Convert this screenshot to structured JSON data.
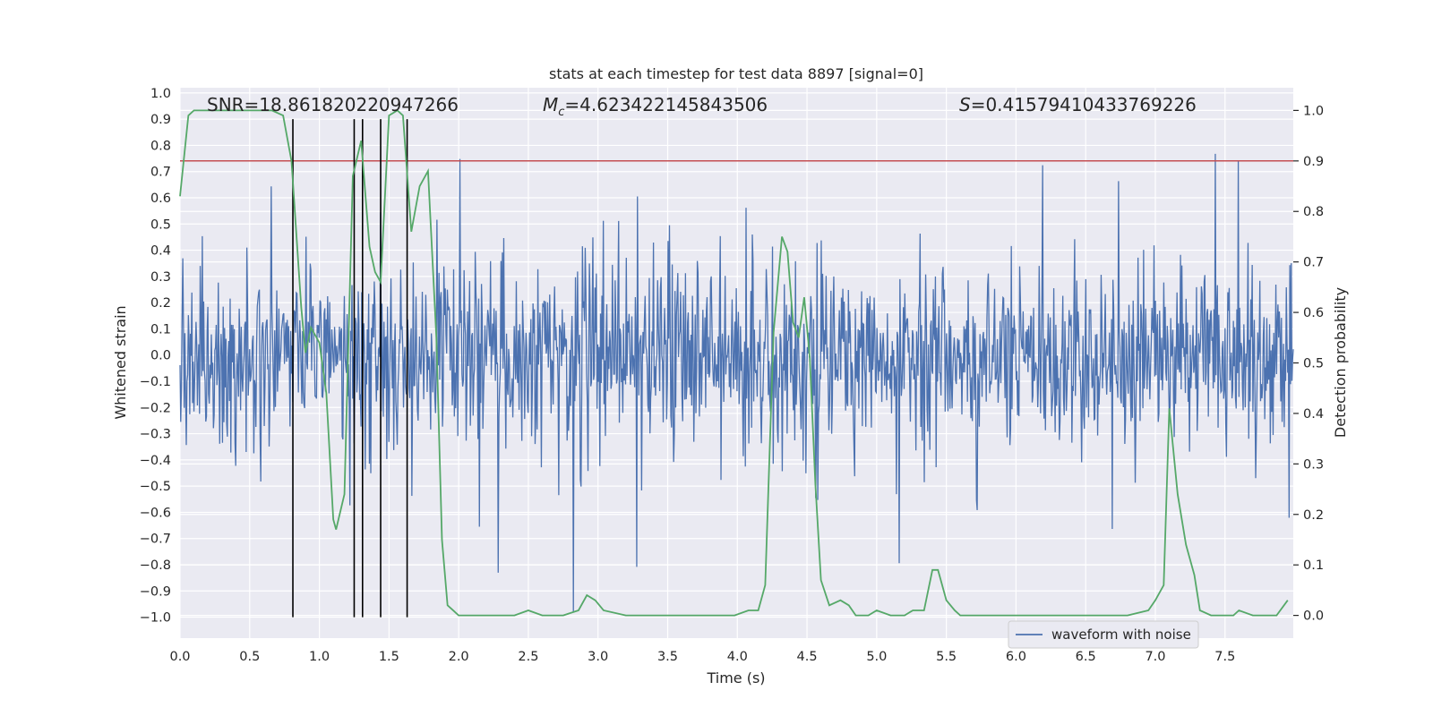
{
  "chart_data": {
    "type": "line",
    "title": "stats at each timestep for test data 8897 [signal=0]",
    "xlabel": "Time (s)",
    "ylabel_left": "Whitened strain",
    "ylabel_right": "Detection probability",
    "xlim": [
      0.0,
      7.99
    ],
    "ylim_left": [
      -1.08,
      1.02
    ],
    "ylim_right": [
      -0.045,
      1.045
    ],
    "xticks": [
      "0.0",
      "0.5",
      "1.0",
      "1.5",
      "2.0",
      "2.5",
      "3.0",
      "3.5",
      "4.0",
      "4.5",
      "5.0",
      "5.5",
      "6.0",
      "6.5",
      "7.0",
      "7.5"
    ],
    "yticks_left": [
      "1.0",
      "0.9",
      "0.8",
      "0.7",
      "0.6",
      "0.5",
      "0.4",
      "0.3",
      "0.2",
      "0.1",
      "0.0",
      "-0.1",
      "-0.2",
      "-0.3",
      "-0.4",
      "-0.5",
      "-0.6",
      "-0.7",
      "-0.8",
      "-0.9",
      "-1.0"
    ],
    "yticks_right": [
      "1.0",
      "0.9",
      "0.8",
      "0.7",
      "0.6",
      "0.5",
      "0.4",
      "0.3",
      "0.2",
      "0.1",
      "0.0"
    ],
    "grid": true,
    "legend_location": "lower-right",
    "annotations": {
      "snr": "SNR=18.861820220947266",
      "mc_symbol": "M",
      "mc_subscript": "c",
      "mc_value": "=4.623422145843506",
      "s_symbol": "S",
      "s_value": "=0.41579410433769226"
    },
    "threshold": {
      "axis": "right",
      "value": 0.9,
      "color": "#c44e52"
    },
    "vertical_markers_x": [
      0.81,
      1.25,
      1.31,
      1.44,
      1.63
    ],
    "series": [
      {
        "name": "waveform with noise",
        "axis": "left",
        "color": "#4c72b0",
        "kind": "noise-strain",
        "duration": 7.99,
        "typical_envelope": 0.33,
        "peak_amplitude": 0.92
      },
      {
        "axis": "right",
        "color": "#55a868",
        "x": [
          0.0,
          0.06,
          0.1,
          0.2,
          0.3,
          0.5,
          0.6,
          0.66,
          0.74,
          0.8,
          0.87,
          0.9,
          0.94,
          1.0,
          1.05,
          1.1,
          1.12,
          1.18,
          1.24,
          1.3,
          1.36,
          1.4,
          1.44,
          1.5,
          1.56,
          1.6,
          1.66,
          1.72,
          1.78,
          1.84,
          1.88,
          1.92,
          1.96,
          2.0,
          2.2,
          2.4,
          2.5,
          2.6,
          2.75,
          2.86,
          2.92,
          2.98,
          3.04,
          3.2,
          3.5,
          3.8,
          3.98,
          4.08,
          4.15,
          4.2,
          4.26,
          4.32,
          4.36,
          4.4,
          4.44,
          4.48,
          4.52,
          4.56,
          4.6,
          4.66,
          4.74,
          4.8,
          4.85,
          4.9,
          4.94,
          5.0,
          5.1,
          5.2,
          5.26,
          5.34,
          5.4,
          5.44,
          5.5,
          5.56,
          5.6,
          5.66,
          5.72,
          5.8,
          6.0,
          6.2,
          6.4,
          6.6,
          6.8,
          6.95,
          7.0,
          7.06,
          7.1,
          7.16,
          7.22,
          7.28,
          7.32,
          7.4,
          7.5,
          7.56,
          7.6,
          7.7,
          7.8,
          7.87,
          7.95
        ],
        "y": [
          0.83,
          0.99,
          1.0,
          1.0,
          1.0,
          1.0,
          1.0,
          1.0,
          0.99,
          0.9,
          0.61,
          0.52,
          0.57,
          0.54,
          0.44,
          0.19,
          0.17,
          0.24,
          0.87,
          0.94,
          0.73,
          0.68,
          0.66,
          0.99,
          1.0,
          0.99,
          0.76,
          0.85,
          0.88,
          0.55,
          0.15,
          0.02,
          0.01,
          0.0,
          0.0,
          0.0,
          0.01,
          0.0,
          0.0,
          0.01,
          0.04,
          0.03,
          0.01,
          0.0,
          0.0,
          0.0,
          0.0,
          0.01,
          0.01,
          0.06,
          0.56,
          0.75,
          0.72,
          0.58,
          0.55,
          0.63,
          0.51,
          0.26,
          0.07,
          0.02,
          0.03,
          0.02,
          0.0,
          0.0,
          0.0,
          0.01,
          0.0,
          0.0,
          0.01,
          0.01,
          0.09,
          0.09,
          0.03,
          0.01,
          0.0,
          0.0,
          0.0,
          0.0,
          0.0,
          0.0,
          0.0,
          0.0,
          0.0,
          0.01,
          0.03,
          0.06,
          0.41,
          0.24,
          0.14,
          0.08,
          0.01,
          0.0,
          0.0,
          0.0,
          0.01,
          0.0,
          0.0,
          0.0,
          0.03
        ]
      }
    ]
  }
}
